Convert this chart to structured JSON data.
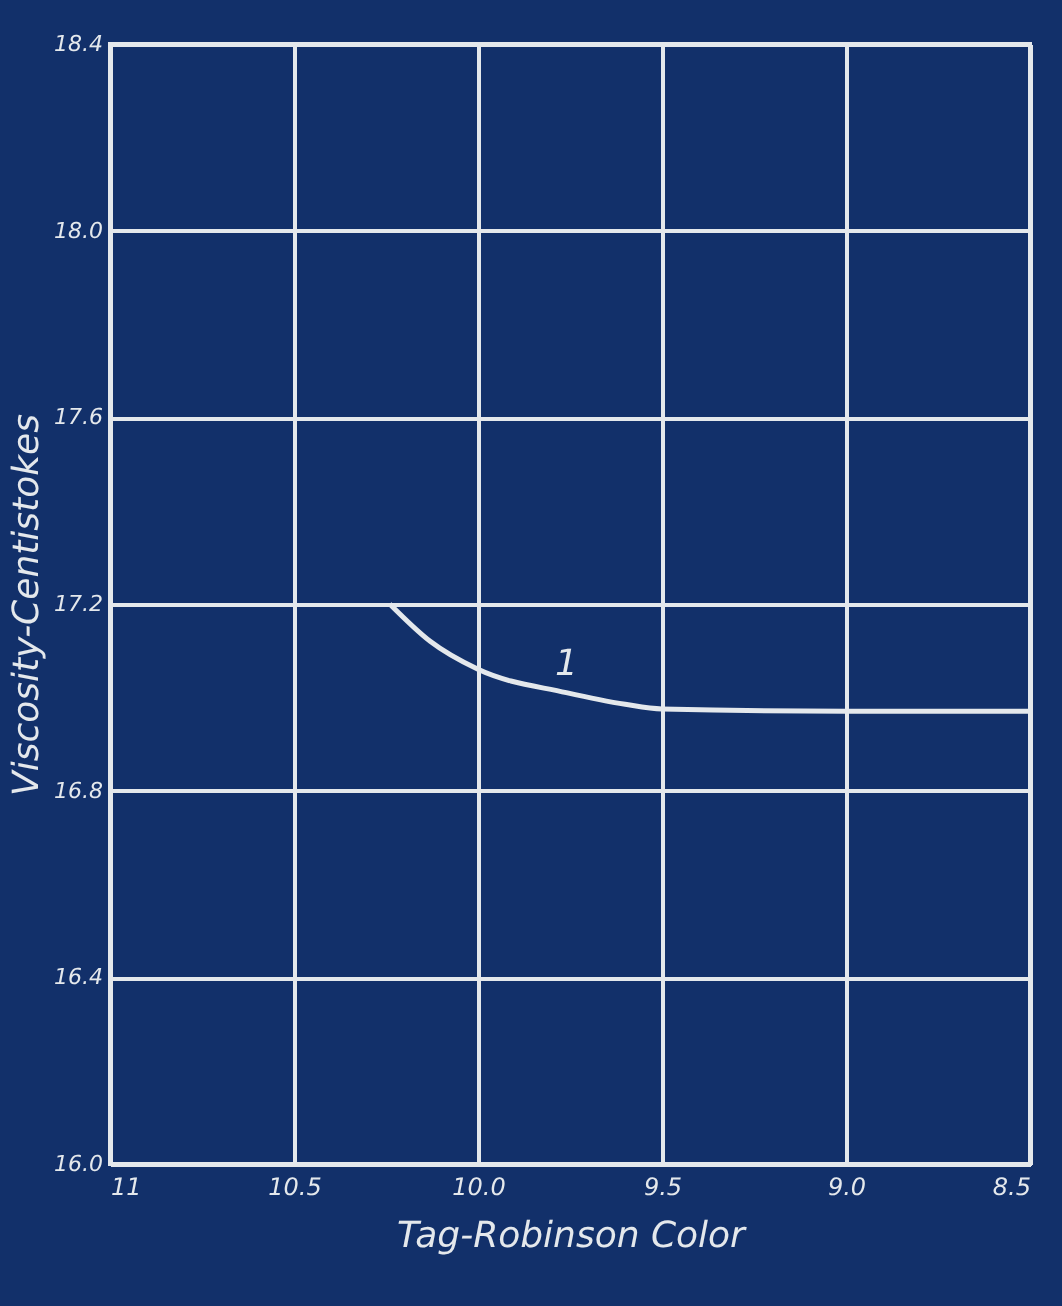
{
  "chart_data": {
    "type": "line",
    "xlabel": "Tag-Robinson Color",
    "ylabel": "Viscosity-Centistokes",
    "x": [
      10.24,
      10.13,
      10.0,
      9.76,
      9.6,
      9.5,
      9.0,
      8.5
    ],
    "series": [
      {
        "color": "#e4e8ec",
        "values": [
          17.2,
          17.12,
          17.06,
          17.01,
          16.985,
          16.975,
          16.97,
          16.97
        ]
      }
    ],
    "xlim": [
      11,
      8.5
    ],
    "xticks": [
      {
        "value": 11,
        "label": "11"
      },
      {
        "value": 10.5,
        "label": "10.5"
      },
      {
        "value": 10,
        "label": "10.0"
      },
      {
        "value": 9.5,
        "label": "9.5"
      },
      {
        "value": 9,
        "label": "9.0"
      },
      {
        "value": 8.5,
        "label": "8.5"
      }
    ],
    "ylim": [
      16.0,
      18.4
    ],
    "yticks": [
      {
        "value": 16.0,
        "label": "16.0"
      },
      {
        "value": 16.4,
        "label": "16.4"
      },
      {
        "value": 16.8,
        "label": "16.8"
      },
      {
        "value": 17.2,
        "label": "17.2"
      },
      {
        "value": 17.6,
        "label": "17.6"
      },
      {
        "value": 18.0,
        "label": "18.0"
      },
      {
        "value": 18.4,
        "label": "18.4"
      }
    ],
    "grid": true,
    "annotations": [
      {
        "text": "1",
        "x": 9.76,
        "y": 17.01
      }
    ]
  }
}
